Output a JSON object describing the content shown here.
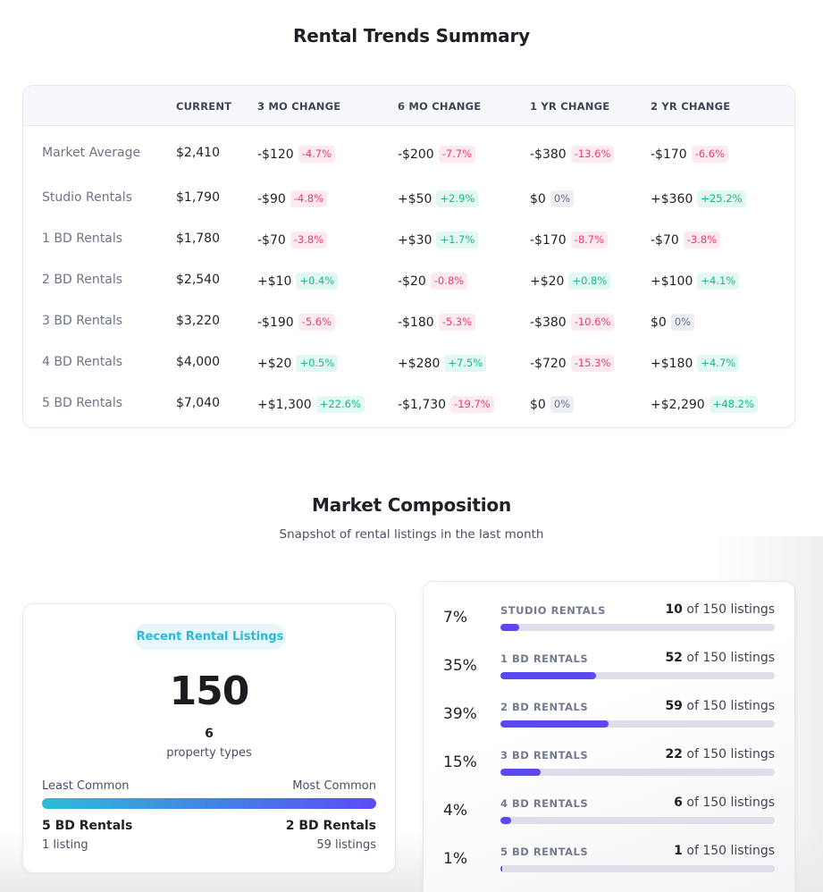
{
  "trends": {
    "title": "Rental Trends Summary",
    "columns": [
      "",
      "CURRENT",
      "3 MO CHANGE",
      "6 MO CHANGE",
      "1 YR CHANGE",
      "2 YR CHANGE"
    ],
    "rows": [
      {
        "label": "Market Average",
        "current": "$2,410",
        "changes": [
          {
            "amount": "-$120",
            "pct": "-4.7%",
            "trend": "neg"
          },
          {
            "amount": "-$200",
            "pct": "-7.7%",
            "trend": "neg"
          },
          {
            "amount": "-$380",
            "pct": "-13.6%",
            "trend": "neg"
          },
          {
            "amount": "-$170",
            "pct": "-6.6%",
            "trend": "neg"
          }
        ]
      },
      {
        "label": "Studio Rentals",
        "current": "$1,790",
        "changes": [
          {
            "amount": "-$90",
            "pct": "-4.8%",
            "trend": "neg"
          },
          {
            "amount": "+$50",
            "pct": "+2.9%",
            "trend": "pos"
          },
          {
            "amount": "$0",
            "pct": "0%",
            "trend": "zero"
          },
          {
            "amount": "+$360",
            "pct": "+25.2%",
            "trend": "pos"
          }
        ]
      },
      {
        "label": "1 BD Rentals",
        "current": "$1,780",
        "changes": [
          {
            "amount": "-$70",
            "pct": "-3.8%",
            "trend": "neg"
          },
          {
            "amount": "+$30",
            "pct": "+1.7%",
            "trend": "pos"
          },
          {
            "amount": "-$170",
            "pct": "-8.7%",
            "trend": "neg"
          },
          {
            "amount": "-$70",
            "pct": "-3.8%",
            "trend": "neg"
          }
        ]
      },
      {
        "label": "2 BD Rentals",
        "current": "$2,540",
        "changes": [
          {
            "amount": "+$10",
            "pct": "+0.4%",
            "trend": "pos"
          },
          {
            "amount": "-$20",
            "pct": "-0.8%",
            "trend": "neg"
          },
          {
            "amount": "+$20",
            "pct": "+0.8%",
            "trend": "pos"
          },
          {
            "amount": "+$100",
            "pct": "+4.1%",
            "trend": "pos"
          }
        ]
      },
      {
        "label": "3 BD Rentals",
        "current": "$3,220",
        "changes": [
          {
            "amount": "-$190",
            "pct": "-5.6%",
            "trend": "neg"
          },
          {
            "amount": "-$180",
            "pct": "-5.3%",
            "trend": "neg"
          },
          {
            "amount": "-$380",
            "pct": "-10.6%",
            "trend": "neg"
          },
          {
            "amount": "$0",
            "pct": "0%",
            "trend": "zero"
          }
        ]
      },
      {
        "label": "4 BD Rentals",
        "current": "$4,000",
        "changes": [
          {
            "amount": "+$20",
            "pct": "+0.5%",
            "trend": "pos"
          },
          {
            "amount": "+$280",
            "pct": "+7.5%",
            "trend": "pos"
          },
          {
            "amount": "-$720",
            "pct": "-15.3%",
            "trend": "neg"
          },
          {
            "amount": "+$180",
            "pct": "+4.7%",
            "trend": "pos"
          }
        ]
      },
      {
        "label": "5 BD Rentals",
        "current": "$7,040",
        "changes": [
          {
            "amount": "+$1,300",
            "pct": "+22.6%",
            "trend": "pos"
          },
          {
            "amount": "-$1,730",
            "pct": "-19.7%",
            "trend": "neg"
          },
          {
            "amount": "$0",
            "pct": "0%",
            "trend": "zero"
          },
          {
            "amount": "+$2,290",
            "pct": "+48.2%",
            "trend": "pos"
          }
        ]
      }
    ]
  },
  "composition": {
    "title": "Market Composition",
    "subtitle": "Snapshot of rental listings in the last month",
    "summary": {
      "pill_label": "Recent Rental Listings",
      "total": "150",
      "types_count": "6",
      "types_label": "property types",
      "least_label": "Least Common",
      "most_label": "Most Common",
      "least_type": "5 BD Rentals",
      "least_count": "1 listing",
      "most_type": "2 BD Rentals",
      "most_count": "59 listings"
    },
    "breakdown": [
      {
        "pct": "7%",
        "name": "STUDIO RENTALS",
        "count": "10",
        "of_label": "of 150 listings",
        "fraction": 0.067
      },
      {
        "pct": "35%",
        "name": "1 BD RENTALS",
        "count": "52",
        "of_label": "of 150 listings",
        "fraction": 0.347
      },
      {
        "pct": "39%",
        "name": "2 BD RENTALS",
        "count": "59",
        "of_label": "of 150 listings",
        "fraction": 0.393
      },
      {
        "pct": "15%",
        "name": "3 BD RENTALS",
        "count": "22",
        "of_label": "of 150 listings",
        "fraction": 0.147
      },
      {
        "pct": "4%",
        "name": "4 BD RENTALS",
        "count": "6",
        "of_label": "of 150 listings",
        "fraction": 0.04
      },
      {
        "pct": "1%",
        "name": "5 BD RENTALS",
        "count": "1",
        "of_label": "of 150 listings",
        "fraction": 0.007
      }
    ],
    "colors": {
      "bar_fill": "#5b48f0",
      "bar_track": "#dedde9",
      "gradient_start": "#2bbcd6",
      "gradient_end": "#5a4cf7",
      "badge_neg": "#e83e6c",
      "badge_pos": "#17b886",
      "badge_zero": "#6b7189"
    }
  }
}
